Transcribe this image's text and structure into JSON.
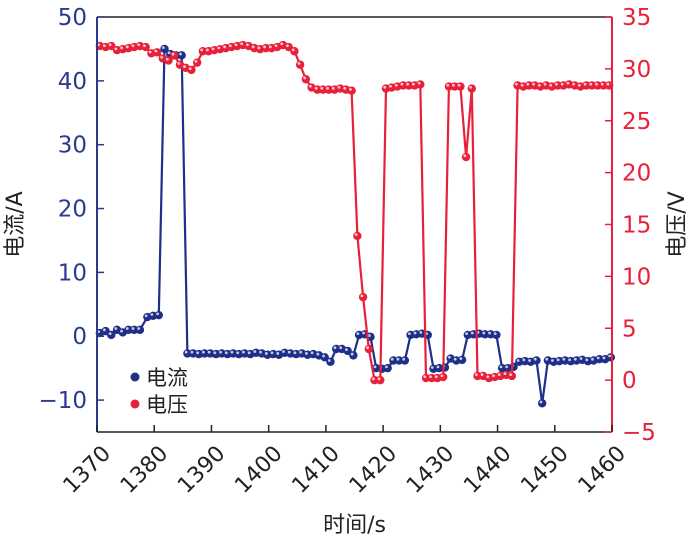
{
  "chart_data": {
    "type": "line",
    "xlabel": "时间/s",
    "x_ticks": [
      1370,
      1380,
      1390,
      1400,
      1410,
      1420,
      1430,
      1440,
      1450,
      1460
    ],
    "xlim": [
      1370,
      1460
    ],
    "left_axis": {
      "label": "电流/A",
      "ylim": [
        -15,
        50
      ],
      "ticks": [
        50,
        40,
        30,
        20,
        10,
        0,
        -10
      ],
      "tick_labels": [
        "50",
        "40",
        "30",
        "20",
        "10",
        "0",
        "−10"
      ],
      "color": "#2b3a8f"
    },
    "right_axis": {
      "label": "电压/V",
      "ylim": [
        -5,
        35
      ],
      "ticks": [
        35,
        30,
        25,
        20,
        15,
        10,
        5,
        0,
        -5
      ],
      "tick_labels": [
        "35",
        "30",
        "25",
        "20",
        "15",
        "10",
        "5",
        "0",
        "−5"
      ],
      "color": "#e8203a"
    },
    "legend_position": "bottom-left",
    "series": [
      {
        "name": "电流",
        "axis": "left",
        "color": "#1e2f8a",
        "points": [
          [
            1370.5,
            0.5
          ],
          [
            1371.5,
            0.8
          ],
          [
            1372.5,
            0.2
          ],
          [
            1373.5,
            1.0
          ],
          [
            1374.5,
            0.6
          ],
          [
            1375.5,
            1.0
          ],
          [
            1376.5,
            1.0
          ],
          [
            1377.5,
            1.0
          ],
          [
            1378.8,
            3.0
          ],
          [
            1379.8,
            3.2
          ],
          [
            1380.8,
            3.3
          ],
          [
            1381.8,
            45.0
          ],
          [
            1382.8,
            44.2
          ],
          [
            1383.8,
            44.0
          ],
          [
            1384.8,
            44.0
          ],
          [
            1385.8,
            -2.7
          ],
          [
            1386.8,
            -2.7
          ],
          [
            1387.8,
            -2.8
          ],
          [
            1388.8,
            -2.7
          ],
          [
            1389.8,
            -2.7
          ],
          [
            1390.8,
            -2.8
          ],
          [
            1391.8,
            -2.7
          ],
          [
            1392.8,
            -2.8
          ],
          [
            1393.8,
            -2.7
          ],
          [
            1394.8,
            -2.8
          ],
          [
            1395.8,
            -2.7
          ],
          [
            1396.8,
            -2.8
          ],
          [
            1397.8,
            -2.6
          ],
          [
            1398.8,
            -2.7
          ],
          [
            1399.8,
            -2.9
          ],
          [
            1400.8,
            -2.8
          ],
          [
            1401.8,
            -2.9
          ],
          [
            1402.8,
            -2.6
          ],
          [
            1403.8,
            -2.7
          ],
          [
            1404.8,
            -2.8
          ],
          [
            1405.8,
            -2.7
          ],
          [
            1406.8,
            -2.9
          ],
          [
            1407.8,
            -2.8
          ],
          [
            1408.8,
            -3.0
          ],
          [
            1409.8,
            -3.3
          ],
          [
            1410.8,
            -4.0
          ],
          [
            1411.8,
            -2.0
          ],
          [
            1412.8,
            -2.0
          ],
          [
            1413.8,
            -2.3
          ],
          [
            1414.8,
            -3.0
          ],
          [
            1415.8,
            0.2
          ],
          [
            1416.8,
            0.3
          ],
          [
            1417.8,
            -0.1
          ],
          [
            1418.8,
            -5.0
          ],
          [
            1419.8,
            -5.1
          ],
          [
            1420.8,
            -5.0
          ],
          [
            1421.8,
            -3.8
          ],
          [
            1422.8,
            -3.8
          ],
          [
            1423.8,
            -3.8
          ],
          [
            1424.8,
            0.2
          ],
          [
            1425.8,
            0.3
          ],
          [
            1426.8,
            0.4
          ],
          [
            1427.8,
            0.2
          ],
          [
            1428.8,
            -5.1
          ],
          [
            1429.8,
            -5.0
          ],
          [
            1430.8,
            -4.9
          ],
          [
            1431.8,
            -3.5
          ],
          [
            1432.8,
            -3.8
          ],
          [
            1433.8,
            -3.7
          ],
          [
            1434.8,
            0.2
          ],
          [
            1435.8,
            0.3
          ],
          [
            1436.8,
            0.4
          ],
          [
            1437.8,
            0.3
          ],
          [
            1438.8,
            0.3
          ],
          [
            1439.8,
            0.2
          ],
          [
            1440.8,
            -5.0
          ],
          [
            1441.8,
            -5.0
          ],
          [
            1442.8,
            -4.8
          ],
          [
            1443.8,
            -4.0
          ],
          [
            1444.8,
            -3.9
          ],
          [
            1445.8,
            -4.0
          ],
          [
            1446.8,
            -3.8
          ],
          [
            1447.8,
            -10.5
          ],
          [
            1448.8,
            -3.8
          ],
          [
            1449.8,
            -4.0
          ],
          [
            1450.8,
            -3.9
          ],
          [
            1451.8,
            -3.8
          ],
          [
            1452.8,
            -3.9
          ],
          [
            1453.8,
            -3.8
          ],
          [
            1454.8,
            -3.7
          ],
          [
            1455.8,
            -3.9
          ],
          [
            1456.8,
            -3.8
          ],
          [
            1457.8,
            -3.6
          ],
          [
            1458.8,
            -3.6
          ],
          [
            1459.8,
            -3.3
          ]
        ]
      },
      {
        "name": "电压",
        "axis": "right",
        "color": "#e8203a",
        "points": [
          [
            1370.5,
            32.2
          ],
          [
            1371.5,
            32.1
          ],
          [
            1372.5,
            32.2
          ],
          [
            1373.5,
            31.8
          ],
          [
            1374.5,
            31.9
          ],
          [
            1375.5,
            32.0
          ],
          [
            1376.5,
            32.1
          ],
          [
            1377.5,
            32.2
          ],
          [
            1378.5,
            32.1
          ],
          [
            1379.5,
            31.5
          ],
          [
            1380.5,
            31.6
          ],
          [
            1381.5,
            31.0
          ],
          [
            1382.5,
            30.8
          ],
          [
            1383.5,
            31.3
          ],
          [
            1384.5,
            30.4
          ],
          [
            1385.5,
            30.1
          ],
          [
            1386.5,
            29.9
          ],
          [
            1387.5,
            30.6
          ],
          [
            1388.5,
            31.7
          ],
          [
            1389.5,
            31.7
          ],
          [
            1390.5,
            31.8
          ],
          [
            1391.5,
            31.9
          ],
          [
            1392.5,
            32.0
          ],
          [
            1393.5,
            32.1
          ],
          [
            1394.5,
            32.2
          ],
          [
            1395.5,
            32.3
          ],
          [
            1396.5,
            32.2
          ],
          [
            1397.5,
            32.0
          ],
          [
            1398.5,
            31.9
          ],
          [
            1399.5,
            32.0
          ],
          [
            1400.5,
            32.0
          ],
          [
            1401.5,
            32.1
          ],
          [
            1402.5,
            32.3
          ],
          [
            1403.5,
            32.1
          ],
          [
            1404.5,
            31.7
          ],
          [
            1405.5,
            30.4
          ],
          [
            1406.5,
            29.0
          ],
          [
            1407.5,
            28.2
          ],
          [
            1408.5,
            28.0
          ],
          [
            1409.5,
            28.0
          ],
          [
            1410.5,
            28.0
          ],
          [
            1411.5,
            28.0
          ],
          [
            1412.5,
            28.1
          ],
          [
            1413.5,
            28.0
          ],
          [
            1414.5,
            27.9
          ],
          [
            1415.5,
            13.9
          ],
          [
            1416.5,
            8.0
          ],
          [
            1417.5,
            3.0
          ],
          [
            1418.5,
            0.0
          ],
          [
            1419.5,
            0.0
          ],
          [
            1420.5,
            28.1
          ],
          [
            1421.5,
            28.2
          ],
          [
            1422.5,
            28.3
          ],
          [
            1423.5,
            28.4
          ],
          [
            1424.5,
            28.4
          ],
          [
            1425.5,
            28.4
          ],
          [
            1426.5,
            28.5
          ],
          [
            1427.5,
            0.2
          ],
          [
            1428.5,
            0.2
          ],
          [
            1429.5,
            0.2
          ],
          [
            1430.5,
            0.3
          ],
          [
            1431.5,
            28.3
          ],
          [
            1432.5,
            28.3
          ],
          [
            1433.5,
            28.3
          ],
          [
            1434.5,
            21.5
          ],
          [
            1435.5,
            28.1
          ],
          [
            1436.5,
            0.4
          ],
          [
            1437.5,
            0.4
          ],
          [
            1438.5,
            0.2
          ],
          [
            1439.5,
            0.3
          ],
          [
            1440.5,
            0.4
          ],
          [
            1441.5,
            0.5
          ],
          [
            1442.5,
            0.4
          ],
          [
            1443.5,
            28.4
          ],
          [
            1444.5,
            28.3
          ],
          [
            1445.5,
            28.4
          ],
          [
            1446.5,
            28.4
          ],
          [
            1447.5,
            28.3
          ],
          [
            1448.5,
            28.4
          ],
          [
            1449.5,
            28.3
          ],
          [
            1450.5,
            28.4
          ],
          [
            1451.5,
            28.4
          ],
          [
            1452.5,
            28.5
          ],
          [
            1453.5,
            28.4
          ],
          [
            1454.5,
            28.3
          ],
          [
            1455.5,
            28.4
          ],
          [
            1456.5,
            28.4
          ],
          [
            1457.5,
            28.4
          ],
          [
            1458.5,
            28.4
          ],
          [
            1459.5,
            28.4
          ]
        ]
      }
    ]
  }
}
